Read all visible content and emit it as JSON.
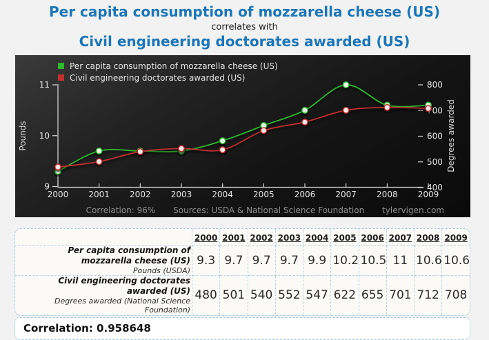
{
  "page": {
    "title_top": "Per capita consumption of mozzarella cheese (US)",
    "title_connector": "correlates with",
    "title_bottom": "Civil engineering doctorates awarded (US)"
  },
  "colors": {
    "title_blue": "#1b76ba",
    "table_border_blue": "#93bcdb",
    "axis_text": "#e3e3e3",
    "caption_gray": "#8f8f8f"
  },
  "chart_data": {
    "type": "line",
    "x": [
      "2000",
      "2001",
      "2002",
      "2003",
      "2004",
      "2005",
      "2006",
      "2007",
      "2008",
      "2009"
    ],
    "series": [
      {
        "name": "Per capita consumption of mozzarella cheese (US)",
        "axis": "left",
        "color": "#2db92d",
        "marker_fill": "#e8fbe8",
        "values": [
          9.3,
          9.7,
          9.7,
          9.7,
          9.9,
          10.2,
          10.5,
          11,
          10.6,
          10.6
        ]
      },
      {
        "name": "Civil engineering doctorates awarded (US)",
        "axis": "right",
        "color": "#c22f2f",
        "marker_fill": "#fbe8e8",
        "values": [
          480,
          501,
          540,
          552,
          547,
          622,
          655,
          701,
          712,
          708
        ]
      }
    ],
    "left_axis": {
      "label": "Pounds",
      "range": [
        9,
        11
      ],
      "ticks": [
        11,
        10,
        9
      ]
    },
    "right_axis": {
      "label": "Degrees awarded",
      "range": [
        400,
        800
      ],
      "ticks": [
        800,
        700,
        600,
        500,
        400
      ]
    },
    "grid": false,
    "legend_position": "top-left",
    "background": "dark",
    "caption": {
      "correlation": "Correlation: 96%",
      "sources": "Sources: USDA & National Science Foundation",
      "site": "tylervigen.com"
    }
  },
  "table": {
    "years": [
      "2000",
      "2001",
      "2002",
      "2003",
      "2004",
      "2005",
      "2006",
      "2007",
      "2008",
      "2009"
    ],
    "rows": [
      {
        "label": "Per capita consumption of mozzarella cheese (US)",
        "sublabel": "Pounds (USDA)",
        "values": [
          "9.3",
          "9.7",
          "9.7",
          "9.7",
          "9.9",
          "10.2",
          "10.5",
          "11",
          "10.6",
          "10.6"
        ]
      },
      {
        "label": "Civil engineering doctorates awarded (US)",
        "sublabel": "Degrees awarded (National Science Foundation)",
        "values": [
          "480",
          "501",
          "540",
          "552",
          "547",
          "622",
          "655",
          "701",
          "712",
          "708"
        ]
      }
    ]
  },
  "footer": {
    "correlation_text": "Correlation: 0.958648"
  }
}
